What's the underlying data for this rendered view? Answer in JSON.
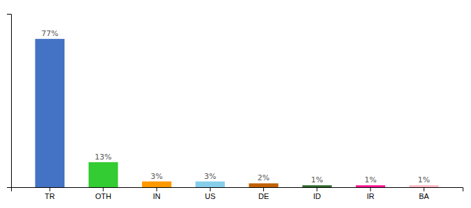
{
  "chart_data": {
    "type": "bar",
    "categories": [
      "TR",
      "OTH",
      "IN",
      "US",
      "DE",
      "ID",
      "IR",
      "BA"
    ],
    "values": [
      77,
      13,
      3,
      3,
      2,
      1,
      1,
      1
    ],
    "value_labels": [
      "77%",
      "13%",
      "3%",
      "3%",
      "2%",
      "1%",
      "1%",
      "1%"
    ],
    "colors": [
      "#4472c4",
      "#33cc33",
      "#ff9900",
      "#87ceeb",
      "#c06000",
      "#2d6a2d",
      "#ff1493",
      "#ffb6c1"
    ],
    "ylim": [
      0,
      90
    ],
    "data_labels": true,
    "tick_labels": "x"
  }
}
